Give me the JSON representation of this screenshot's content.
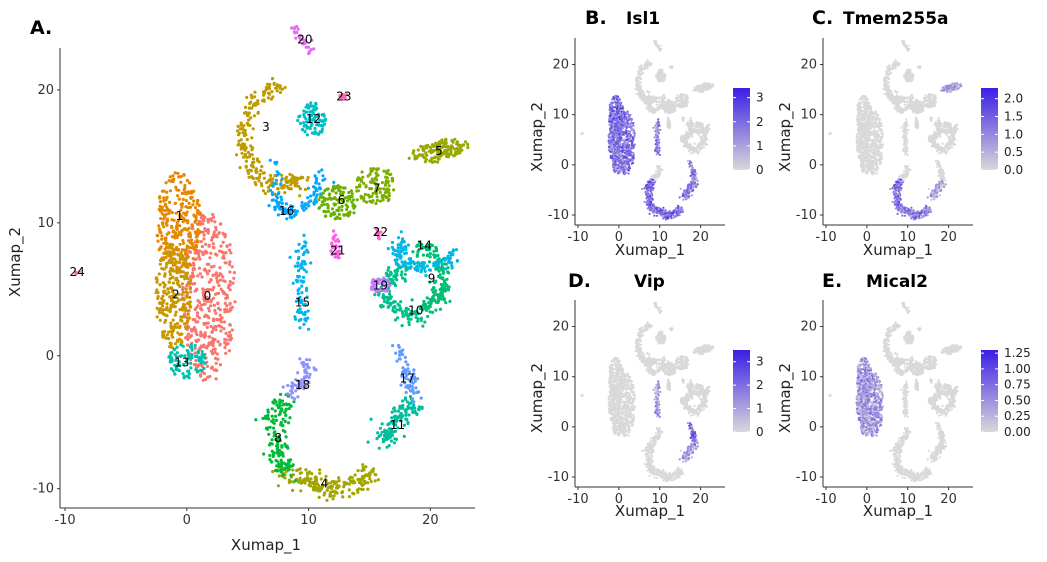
{
  "chart_data": [
    {
      "panel": "A.",
      "type": "scatter",
      "title": "",
      "xlabel": "Xumap_1",
      "ylabel": "Xumap_2",
      "xlim": [
        -10.5,
        25
      ],
      "ylim": [
        -12,
        23
      ],
      "xticks": [
        "-10",
        "0",
        "10",
        "20"
      ],
      "yticks": [
        "-10",
        "0",
        "10",
        "20"
      ],
      "grid": false,
      "clusters": [
        {
          "name": "0",
          "color": "#F8766D",
          "x": 1.7,
          "y": 4.5
        },
        {
          "name": "1",
          "color": "#E58700",
          "x": -0.6,
          "y": 10.5
        },
        {
          "name": "2",
          "color": "#C99800",
          "x": -0.9,
          "y": 4.6
        },
        {
          "name": "3",
          "color": "#BD9C00",
          "x": 6.5,
          "y": 17.2
        },
        {
          "name": "4",
          "color": "#A3A500",
          "x": 11.3,
          "y": -9.6
        },
        {
          "name": "5",
          "color": "#99A800",
          "x": 20.7,
          "y": 15.4
        },
        {
          "name": "6",
          "color": "#6BB100",
          "x": 12.7,
          "y": 11.7
        },
        {
          "name": "7",
          "color": "#7CAE00",
          "x": 15.6,
          "y": 12.6
        },
        {
          "name": "8",
          "color": "#00BA38",
          "x": 7.5,
          "y": -6.2
        },
        {
          "name": "9",
          "color": "#00BF74",
          "x": 20.1,
          "y": 5.8
        },
        {
          "name": "10",
          "color": "#00C08B",
          "x": 18.8,
          "y": 3.4
        },
        {
          "name": "11",
          "color": "#00BE9C",
          "x": 17.3,
          "y": -5.2
        },
        {
          "name": "12",
          "color": "#00BFC4",
          "x": 10.4,
          "y": 17.8
        },
        {
          "name": "13",
          "color": "#00C0AF",
          "x": -0.4,
          "y": -0.5
        },
        {
          "name": "14",
          "color": "#00B8E7",
          "x": 19.5,
          "y": 8.3
        },
        {
          "name": "15",
          "color": "#00B4F0",
          "x": 9.5,
          "y": 4.0
        },
        {
          "name": "16",
          "color": "#00A9FF",
          "x": 8.2,
          "y": 10.9
        },
        {
          "name": "17",
          "color": "#619CFF",
          "x": 18.1,
          "y": -1.7
        },
        {
          "name": "18",
          "color": "#8F91FF",
          "x": 9.5,
          "y": -2.2
        },
        {
          "name": "19",
          "color": "#C77CFF",
          "x": 15.9,
          "y": 5.3
        },
        {
          "name": "20",
          "color": "#E76BF3",
          "x": 9.7,
          "y": 23.8
        },
        {
          "name": "21",
          "color": "#F564E3",
          "x": 12.4,
          "y": 7.9
        },
        {
          "name": "22",
          "color": "#FF61C3",
          "x": 15.9,
          "y": 9.3
        },
        {
          "name": "23",
          "color": "#FF64B0",
          "x": 12.9,
          "y": 19.5
        },
        {
          "name": "24",
          "color": "#FF6C91",
          "x": -9.0,
          "y": 6.3
        }
      ]
    },
    {
      "panel": "B.",
      "type": "scatter",
      "title": "Isl1",
      "xlabel": "Xumap_1",
      "ylabel": "Xumap_2",
      "xticks": [
        "-10",
        "0",
        "10",
        "20"
      ],
      "yticks": [
        "-10",
        "0",
        "10",
        "20"
      ],
      "color_low": "#d9d9d9",
      "color_high": "#3a1ee6",
      "legend_ticks": [
        "3",
        "2",
        "1",
        "0"
      ],
      "legend_values": [
        3,
        2,
        1,
        0
      ],
      "legend_max": 3.4,
      "expressed_clusters": [
        {
          "cluster": "0",
          "level": 0.55
        },
        {
          "cluster": "1",
          "level": 0.6
        },
        {
          "cluster": "2",
          "level": 0.55
        },
        {
          "cluster": "13",
          "level": 0.5
        },
        {
          "cluster": "4",
          "level": 0.6
        },
        {
          "cluster": "8",
          "level": 0.6
        },
        {
          "cluster": "11",
          "level": 0.5
        },
        {
          "cluster": "17",
          "level": 0.45
        },
        {
          "cluster": "15",
          "level": 0.5
        }
      ]
    },
    {
      "panel": "C.",
      "type": "scatter",
      "title": "Tmem255a",
      "xlabel": "Xumap_1",
      "ylabel": "Xumap_2",
      "xticks": [
        "-10",
        "0",
        "10",
        "20"
      ],
      "yticks": [
        "-10",
        "0",
        "10",
        "20"
      ],
      "color_low": "#d9d9d9",
      "color_high": "#3a1ee6",
      "legend_ticks": [
        "2.0",
        "1.5",
        "1.0",
        "0.5",
        "0.0"
      ],
      "legend_values": [
        2.0,
        1.5,
        1.0,
        0.5,
        0.0
      ],
      "legend_max": 2.3,
      "expressed_clusters": [
        {
          "cluster": "8",
          "level": 0.55
        },
        {
          "cluster": "4",
          "level": 0.5
        },
        {
          "cluster": "11",
          "level": 0.25
        },
        {
          "cluster": "5",
          "level": 0.3
        }
      ]
    },
    {
      "panel": "D.",
      "type": "scatter",
      "title": "Vip",
      "xlabel": "Xumap_1",
      "ylabel": "Xumap_2",
      "xticks": [
        "-10",
        "0",
        "10",
        "20"
      ],
      "yticks": [
        "-10",
        "0",
        "10",
        "20"
      ],
      "color_low": "#d9d9d9",
      "color_high": "#3a1ee6",
      "legend_ticks": [
        "3",
        "2",
        "1",
        "0"
      ],
      "legend_values": [
        3,
        2,
        1,
        0
      ],
      "legend_max": 3.5,
      "expressed_clusters": [
        {
          "cluster": "17",
          "level": 0.6
        },
        {
          "cluster": "15",
          "level": 0.35
        },
        {
          "cluster": "11",
          "level": 0.3
        }
      ]
    },
    {
      "panel": "E.",
      "type": "scatter",
      "title": "Mical2",
      "xlabel": "Xumap_1",
      "ylabel": "Xumap_2",
      "xticks": [
        "-10",
        "0",
        "10",
        "20"
      ],
      "yticks": [
        "-10",
        "0",
        "10",
        "20"
      ],
      "color_low": "#d9d9d9",
      "color_high": "#3a1ee6",
      "legend_ticks": [
        "1.25",
        "1.00",
        "0.75",
        "0.50",
        "0.25",
        "0.00"
      ],
      "legend_values": [
        1.25,
        1.0,
        0.75,
        0.5,
        0.25,
        0.0
      ],
      "legend_max": 1.3,
      "expressed_clusters": [
        {
          "cluster": "0",
          "level": 0.35
        },
        {
          "cluster": "1",
          "level": 0.35
        },
        {
          "cluster": "2",
          "level": 0.35
        },
        {
          "cluster": "13",
          "level": 0.3
        }
      ]
    }
  ]
}
